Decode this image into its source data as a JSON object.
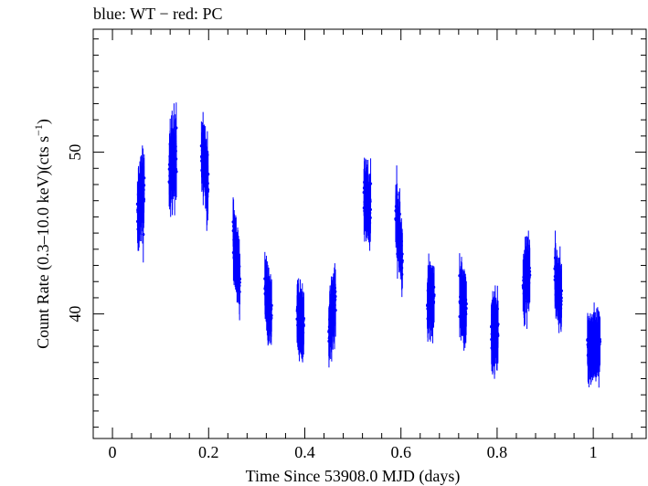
{
  "chart_data": {
    "type": "scatter",
    "title": "blue: WT − red: PC",
    "xlabel": "Time Since 53908.0 MJD (days)",
    "ylabel": "Count Rate (0.3–10.0 keV)(cts s",
    "ylabel_sup": "−1",
    "ylabel_end": ")",
    "xlim": [
      -0.04,
      1.11
    ],
    "ylim": [
      32.3,
      57.6
    ],
    "x_ticks": [
      0,
      0.2,
      0.4,
      0.6,
      0.8,
      1
    ],
    "x_tick_labels": [
      "0",
      "0.2",
      "0.4",
      "0.6",
      "0.8",
      "1"
    ],
    "y_ticks": [
      40,
      50
    ],
    "y_tick_labels": [
      "40",
      "50"
    ],
    "legend": "none",
    "grid": false,
    "colors": {
      "WT": "#0000ff",
      "PC": "#ff0000",
      "axes": "#000000"
    },
    "series": [
      {
        "name": "WT",
        "color": "#0000ff",
        "note_clusters_as_observations": true,
        "clusters": [
          {
            "t0": 0.052,
            "t1": 0.066,
            "mean": 47.0,
            "slope": 2.0,
            "scatter": 2.2,
            "err": 1.5,
            "n": 46
          },
          {
            "t0": 0.118,
            "t1": 0.133,
            "mean": 49.5,
            "slope": 1.0,
            "scatter": 2.3,
            "err": 1.6,
            "n": 46
          },
          {
            "t0": 0.185,
            "t1": 0.199,
            "mean": 49.0,
            "slope": -2.0,
            "scatter": 1.8,
            "err": 1.5,
            "n": 46
          },
          {
            "t0": 0.251,
            "t1": 0.265,
            "mean": 43.3,
            "slope": -3.0,
            "scatter": 1.6,
            "err": 1.5,
            "n": 46
          },
          {
            "t0": 0.317,
            "t1": 0.331,
            "mean": 40.8,
            "slope": -1.0,
            "scatter": 1.4,
            "err": 1.5,
            "n": 46
          },
          {
            "t0": 0.384,
            "t1": 0.398,
            "mean": 39.5,
            "slope": -0.5,
            "scatter": 1.4,
            "err": 1.5,
            "n": 46
          },
          {
            "t0": 0.45,
            "t1": 0.464,
            "mean": 40.0,
            "slope": 1.5,
            "scatter": 1.4,
            "err": 1.5,
            "n": 46
          },
          {
            "t0": 0.523,
            "t1": 0.537,
            "mean": 47.0,
            "slope": -1.0,
            "scatter": 1.7,
            "err": 1.6,
            "n": 46
          },
          {
            "t0": 0.589,
            "t1": 0.603,
            "mean": 44.8,
            "slope": -2.5,
            "scatter": 1.6,
            "err": 1.5,
            "n": 46
          },
          {
            "t0": 0.655,
            "t1": 0.669,
            "mean": 41.0,
            "slope": 0.0,
            "scatter": 1.5,
            "err": 1.5,
            "n": 46
          },
          {
            "t0": 0.722,
            "t1": 0.736,
            "mean": 40.8,
            "slope": -1.5,
            "scatter": 1.5,
            "err": 1.5,
            "n": 46
          },
          {
            "t0": 0.788,
            "t1": 0.802,
            "mean": 38.8,
            "slope": 0.5,
            "scatter": 1.4,
            "err": 1.5,
            "n": 46
          },
          {
            "t0": 0.854,
            "t1": 0.868,
            "mean": 42.3,
            "slope": 1.0,
            "scatter": 1.5,
            "err": 1.5,
            "n": 46
          },
          {
            "t0": 0.92,
            "t1": 0.934,
            "mean": 41.6,
            "slope": -2.0,
            "scatter": 1.4,
            "err": 1.5,
            "n": 46
          },
          {
            "t0": 0.988,
            "t1": 1.014,
            "mean": 38.0,
            "slope": 0.5,
            "scatter": 1.2,
            "err": 1.5,
            "n": 80
          }
        ]
      }
    ]
  }
}
